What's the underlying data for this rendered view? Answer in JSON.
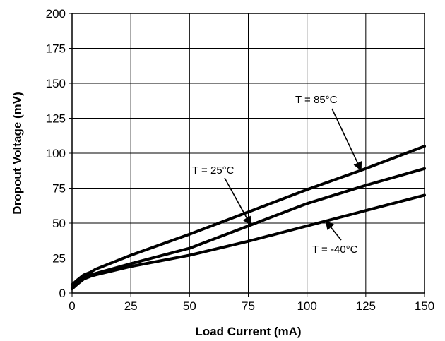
{
  "chart_data": {
    "type": "line",
    "title": "",
    "xlabel": "Load Current (mA)",
    "ylabel": "Dropout Voltage (mV)",
    "xlim": [
      0,
      150
    ],
    "ylim": [
      0,
      200
    ],
    "x_ticks": [
      0,
      25,
      50,
      75,
      100,
      125,
      150
    ],
    "y_ticks": [
      0,
      25,
      50,
      75,
      100,
      125,
      150,
      175,
      200
    ],
    "grid": true,
    "series": [
      {
        "name": "T = 85°C",
        "x": [
          0,
          2,
          5,
          8,
          10,
          25,
          50,
          75,
          100,
          125,
          150
        ],
        "y": [
          6,
          9,
          13,
          15,
          17,
          27,
          42,
          58,
          74,
          89,
          105
        ]
      },
      {
        "name": "T = 25°C",
        "x": [
          0,
          2,
          5,
          8,
          10,
          25,
          50,
          75,
          100,
          125,
          150
        ],
        "y": [
          4,
          7,
          11,
          13,
          14,
          21,
          32,
          48,
          64,
          77,
          89
        ]
      },
      {
        "name": "T = -40°C",
        "x": [
          0,
          2,
          5,
          8,
          10,
          25,
          50,
          75,
          100,
          125,
          150
        ],
        "y": [
          3,
          6,
          10,
          12,
          13,
          19,
          27,
          37,
          48,
          59,
          70
        ]
      }
    ],
    "annotations": [
      {
        "text": "T = 85°C",
        "series": "T = 85°C",
        "x_at": 123
      },
      {
        "text": "T = 25°C",
        "series": "T = 25°C",
        "x_at": 76
      },
      {
        "text": "T = -40°C",
        "series": "T = -40°C",
        "x_at": 108
      }
    ]
  }
}
